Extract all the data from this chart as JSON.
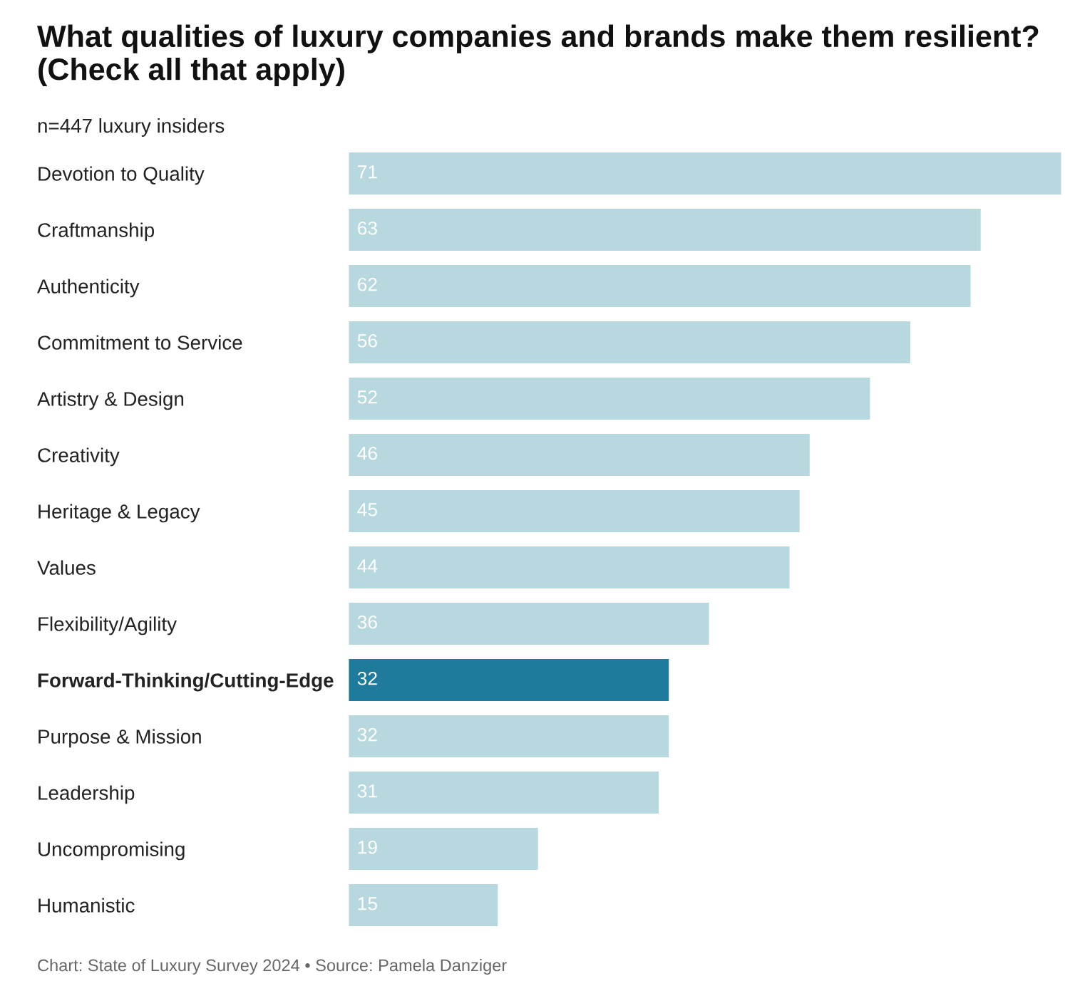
{
  "chart_data": {
    "type": "bar",
    "orientation": "horizontal",
    "title": "What qualities of luxury companies and brands make them resilient? (Check all that apply)",
    "subtitle": "n=447 luxury insiders",
    "categories": [
      "Devotion to Quality",
      "Craftmanship",
      "Authenticity",
      "Commitment to Service",
      "Artistry & Design",
      "Creativity",
      "Heritage & Legacy",
      "Values",
      "Flexibility/Agility",
      "Forward-Thinking/Cutting-Edge",
      "Purpose & Mission",
      "Leadership",
      "Uncompromising",
      "Humanistic"
    ],
    "values": [
      71,
      63,
      62,
      56,
      52,
      46,
      45,
      44,
      36,
      32,
      32,
      31,
      19,
      15
    ],
    "colors": [
      "#b8d8e0",
      "#b8d8e0",
      "#b8d8e0",
      "#b8d8e0",
      "#b8d8e0",
      "#b8d8e0",
      "#b8d8e0",
      "#b8d8e0",
      "#b8d8e0",
      "#1f7b9c",
      "#b8d8e0",
      "#b8d8e0",
      "#b8d8e0",
      "#b8d8e0"
    ],
    "data_labels": true,
    "annotations": [
      "Chart: State of Luxury Survey 2024 • Source: Pamela Danziger"
    ]
  }
}
